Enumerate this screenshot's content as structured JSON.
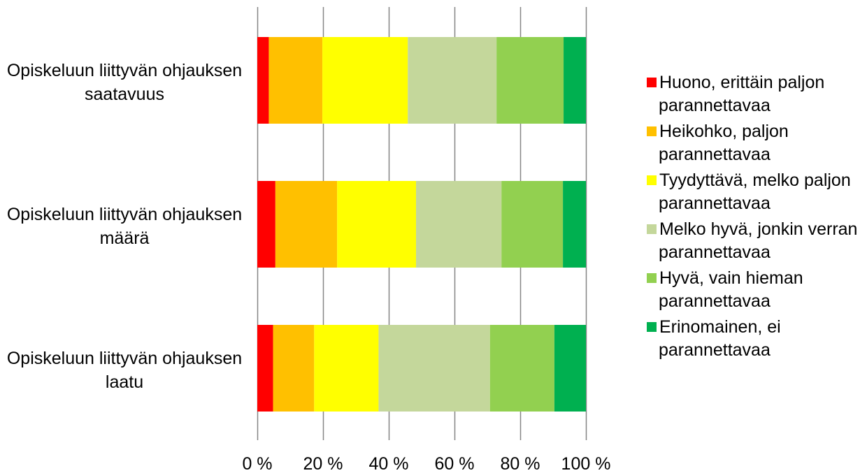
{
  "chart_data": {
    "type": "bar",
    "orientation": "horizontal",
    "stacked": "percent",
    "categories": [
      [
        "Opiskeluun liittyvän ohjauksen",
        "saatavuus"
      ],
      [
        "Opiskeluun liittyvän ohjauksen",
        "määrä"
      ],
      [
        "Opiskeluun liittyvän ohjauksen",
        "laatu"
      ]
    ],
    "series": [
      {
        "name": [
          "Huono, erittäin paljon",
          "parannettavaa"
        ],
        "color": "#ff0000",
        "values": [
          3.5,
          5.5,
          4.8
        ]
      },
      {
        "name": [
          "Heikohko, paljon",
          "parannettavaa"
        ],
        "color": "#ffc000",
        "values": [
          16.3,
          18.8,
          12.5
        ]
      },
      {
        "name": [
          "Tyydyttävä, melko paljon",
          "parannettavaa"
        ],
        "color": "#ffff00",
        "values": [
          26.0,
          24.0,
          19.6
        ]
      },
      {
        "name": [
          "Melko hyvä, jonkin verran",
          "parannettavaa"
        ],
        "color": "#c4d79b",
        "values": [
          27.0,
          26.0,
          33.9
        ]
      },
      {
        "name": [
          "Hyvä, vain hieman",
          "parannettavaa"
        ],
        "color": "#92d050",
        "values": [
          20.4,
          18.7,
          19.6
        ]
      },
      {
        "name": [
          "Erinomainen, ei",
          "parannettavaa"
        ],
        "color": "#00b050",
        "values": [
          6.8,
          7.0,
          9.6
        ]
      }
    ],
    "xlim": [
      0,
      100
    ],
    "x_ticks": [
      "0 %",
      "20 %",
      "40 %",
      "60 %",
      "80 %",
      "100 %"
    ],
    "grid": true,
    "legend_position": "right"
  }
}
